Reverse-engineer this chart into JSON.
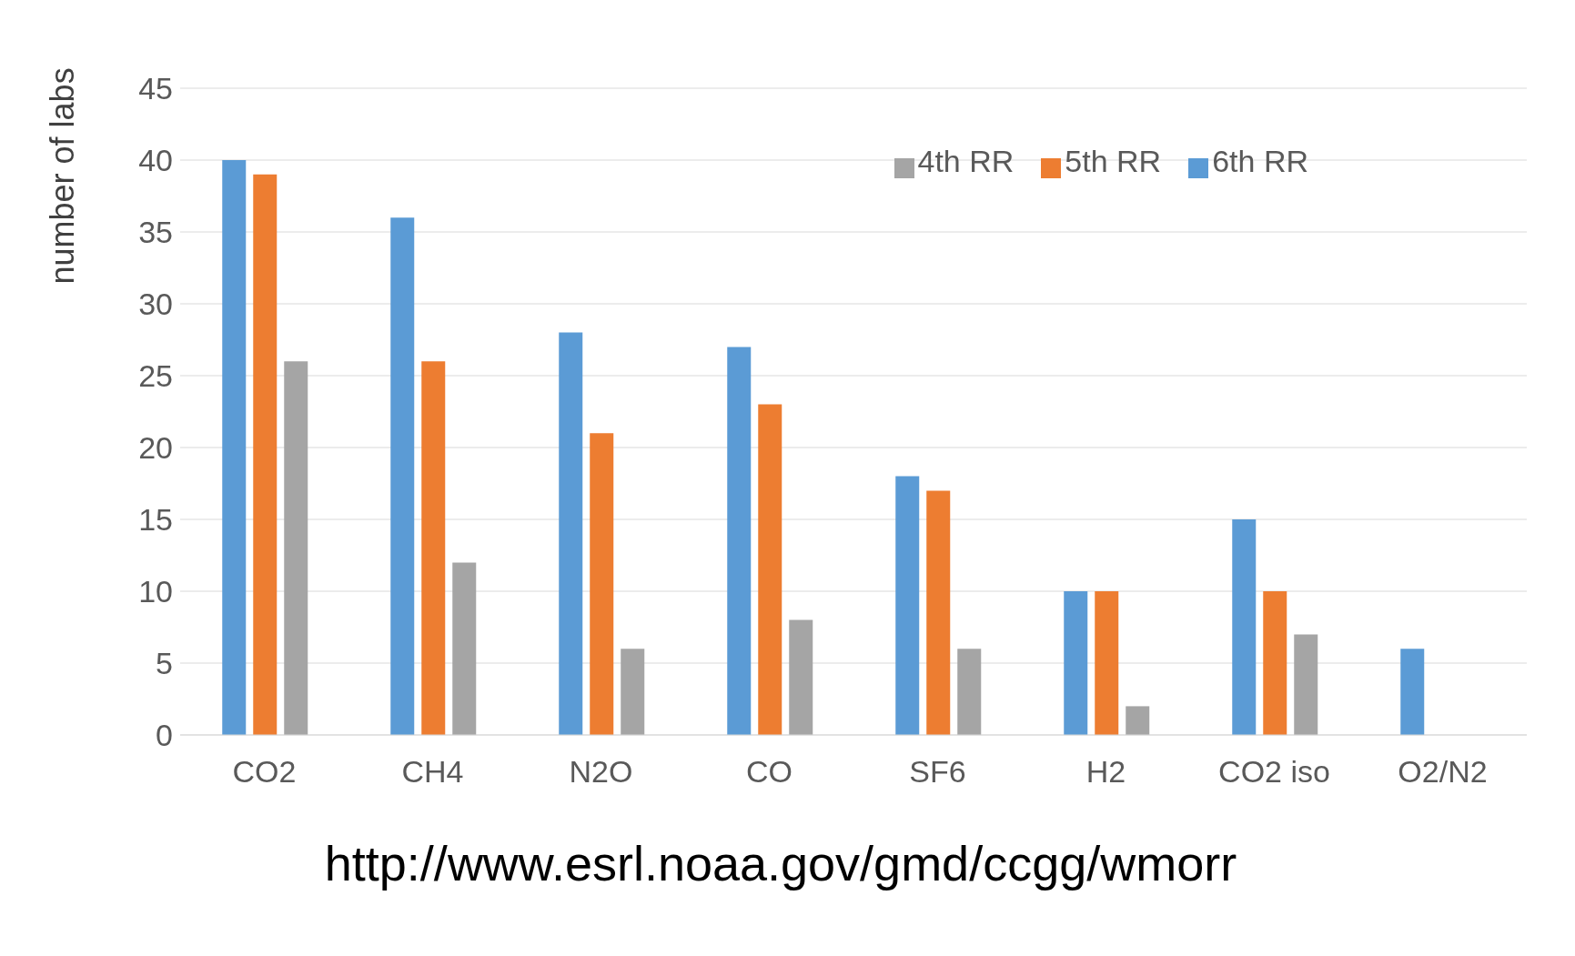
{
  "chart_data": {
    "type": "bar",
    "ylabel": "number of labs",
    "categories": [
      "CO2",
      "CH4",
      "N2O",
      "CO",
      "SF6",
      "H2",
      "CO2 iso",
      "O2/N2"
    ],
    "series": [
      {
        "name": "6th RR",
        "color": "#5b9bd5",
        "values": [
          40,
          36,
          28,
          27,
          18,
          10,
          15,
          6
        ]
      },
      {
        "name": "5th RR",
        "color": "#ed7d31",
        "values": [
          39,
          26,
          21,
          23,
          17,
          10,
          10,
          null
        ]
      },
      {
        "name": "4th RR",
        "color": "#a5a5a5",
        "values": [
          26,
          12,
          6,
          8,
          6,
          2,
          7,
          null
        ]
      }
    ],
    "ylim": [
      0,
      45
    ],
    "yticks": [
      0,
      5,
      10,
      15,
      20,
      25,
      30,
      35,
      40,
      45
    ],
    "grid": "y",
    "legend": "top right",
    "annotations": [
      "http://www.esrl.noaa.gov/gmd/ccgg/wmorr"
    ]
  }
}
